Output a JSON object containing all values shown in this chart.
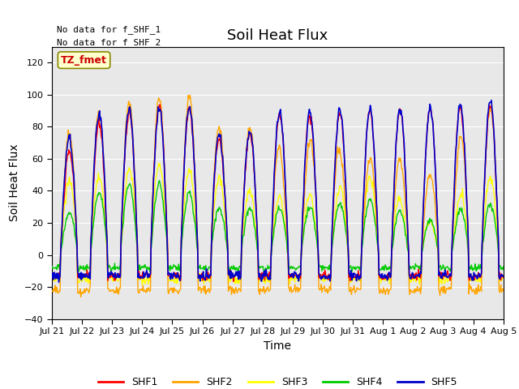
{
  "title": "Soil Heat Flux",
  "ylabel": "Soil Heat Flux",
  "xlabel": "Time",
  "ylim": [
    -40,
    130
  ],
  "yticks": [
    -40,
    -20,
    0,
    20,
    40,
    60,
    80,
    100,
    120
  ],
  "no_data_text1": "No data for f_SHF_1",
  "no_data_text2": "No data for f_SHF_2",
  "tz_label": "TZ_fmet",
  "colors": {
    "SHF1": "#FF0000",
    "SHF2": "#FFA500",
    "SHF3": "#FFFF00",
    "SHF4": "#00CC00",
    "SHF5": "#0000CC"
  },
  "bg_color": "#E8E8E8",
  "legend_entries": [
    "SHF1",
    "SHF2",
    "SHF3",
    "SHF4",
    "SHF5"
  ],
  "xtick_labels": [
    "Jul 21",
    "Jul 22",
    "Jul 23",
    "Jul 24",
    "Jul 25",
    "Jul 26",
    "Jul 27",
    "Jul 28",
    "Jul 29",
    "Jul 30",
    "Jul 31",
    "Aug 1",
    "Aug 2",
    "Aug 3",
    "Aug 4",
    "Aug 5"
  ],
  "n_days": 16
}
